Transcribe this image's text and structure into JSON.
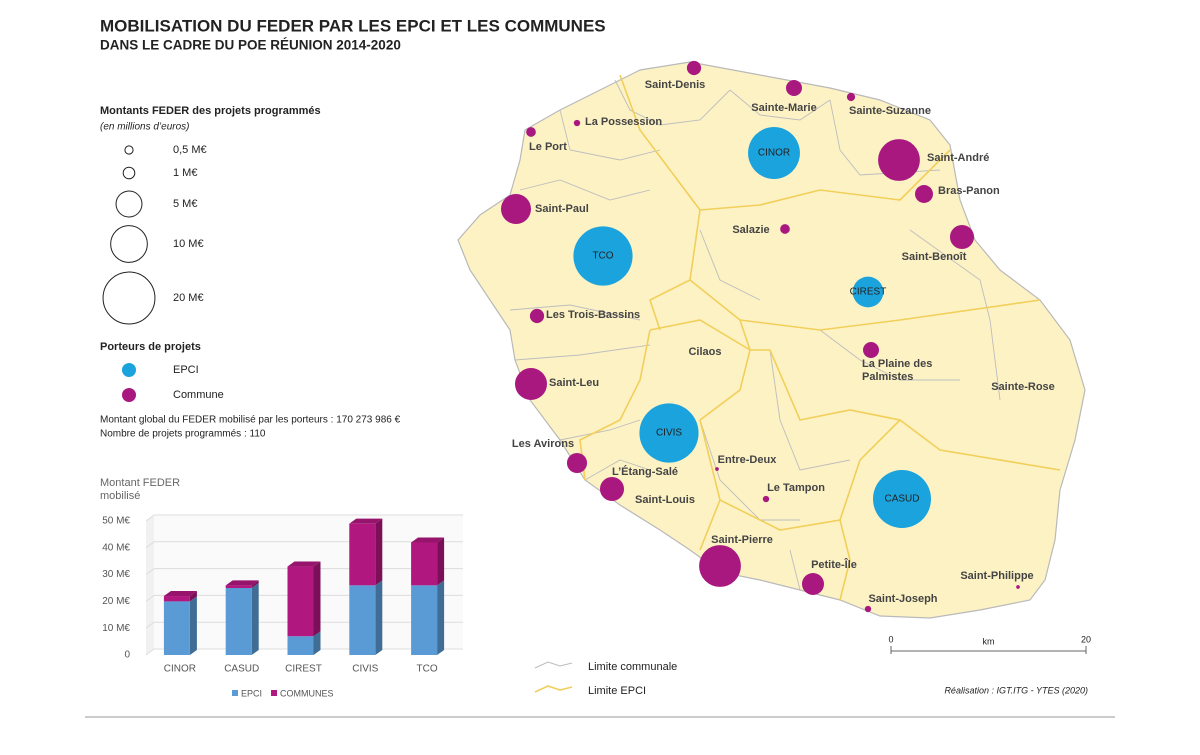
{
  "title": {
    "line1": "MOBILISATION DU FEDER PAR LES EPCI ET LES COMMUNES",
    "line2": "DANS LE CADRE DU POE RÉUNION 2014-2020"
  },
  "size_legend": {
    "title": "Montants FEDER des projets programmés",
    "subtitle": "(en millions d’euros)",
    "entries": [
      {
        "value": 0.5,
        "label": "0,5 M€"
      },
      {
        "value": 1,
        "label": "1 M€"
      },
      {
        "value": 5,
        "label": "5 M€"
      },
      {
        "value": 10,
        "label": "10 M€"
      },
      {
        "value": 20,
        "label": "20 M€"
      }
    ]
  },
  "porteurs_legend": {
    "title": "Porteurs de projets",
    "items": [
      {
        "name": "EPCI",
        "color": "#1ba3dd"
      },
      {
        "name": "Commune",
        "color": "#a8187f"
      }
    ]
  },
  "summary": [
    "Montant global du FEDER mobilisé par les porteurs : 170 273 986 €",
    "Nombre de projets programmés : 110"
  ],
  "chart_data": {
    "type": "bar",
    "stacked": true,
    "y_label": "Montant FEDER mobilisé",
    "categories": [
      "CINOR",
      "CASUD",
      "CIREST",
      "CIVIS",
      "TCO"
    ],
    "series": [
      {
        "name": "EPCI",
        "color": "#5b9bd5",
        "values": [
          20,
          25,
          7,
          26,
          26
        ]
      },
      {
        "name": "COMMUNES",
        "color": "#b0177f",
        "values": [
          2,
          1,
          26,
          23,
          16
        ]
      }
    ],
    "ylim": [
      0,
      50
    ],
    "yticks": [
      0,
      {
        "value": 10,
        "label": "10 M€"
      },
      {
        "value": 20,
        "label": "20 M€"
      },
      {
        "value": 30,
        "label": "30 M€"
      },
      {
        "value": 40,
        "label": "40 M€"
      },
      {
        "value": 50,
        "label": "50 M€"
      }
    ]
  },
  "map": {
    "communes": [
      {
        "name": "Saint-Denis",
        "amount": 1.5
      },
      {
        "name": "Sainte-Marie",
        "amount": 1.9
      },
      {
        "name": "Sainte-Suzanne",
        "amount": 0.5
      },
      {
        "name": "La Possession",
        "amount": 0.3
      },
      {
        "name": "Le Port",
        "amount": 0.7
      },
      {
        "name": "Saint-André",
        "amount": 13
      },
      {
        "name": "Bras-Panon",
        "amount": 2.4
      },
      {
        "name": "Saint-Paul",
        "amount": 6.7
      },
      {
        "name": "Salazie",
        "amount": 0.7
      },
      {
        "name": "Saint-Benoît",
        "amount": 4.3
      },
      {
        "name": "Les Trois-Bassins",
        "amount": 1.5
      },
      {
        "name": "La Plaine des Palmistes",
        "amount": 1.9
      },
      {
        "name": "Saint-Leu",
        "amount": 7.6
      },
      {
        "name": "Les Avirons",
        "amount": 3
      },
      {
        "name": "L’Étang-Salé",
        "amount": 4.3
      },
      {
        "name": "Saint-Louis",
        "amount": null
      },
      {
        "name": "Entre-Deux",
        "amount": 0.1
      },
      {
        "name": "Le Tampon",
        "amount": 0.3
      },
      {
        "name": "Saint-Pierre",
        "amount": 13
      },
      {
        "name": "Petite-Île",
        "amount": 3.6
      },
      {
        "name": "Saint-Joseph",
        "amount": 0.3
      },
      {
        "name": "Saint-Philippe",
        "amount": 0.1
      },
      {
        "name": "Cilaos",
        "amount": null
      },
      {
        "name": "Sainte-Rose",
        "amount": null
      }
    ],
    "line_legend": [
      "Limite communale",
      "Limite EPCI"
    ],
    "scale": {
      "min": 0,
      "max": 20,
      "unit": "km"
    },
    "credit": "Réalisation : IGT.ITG - YTES (2020)"
  }
}
